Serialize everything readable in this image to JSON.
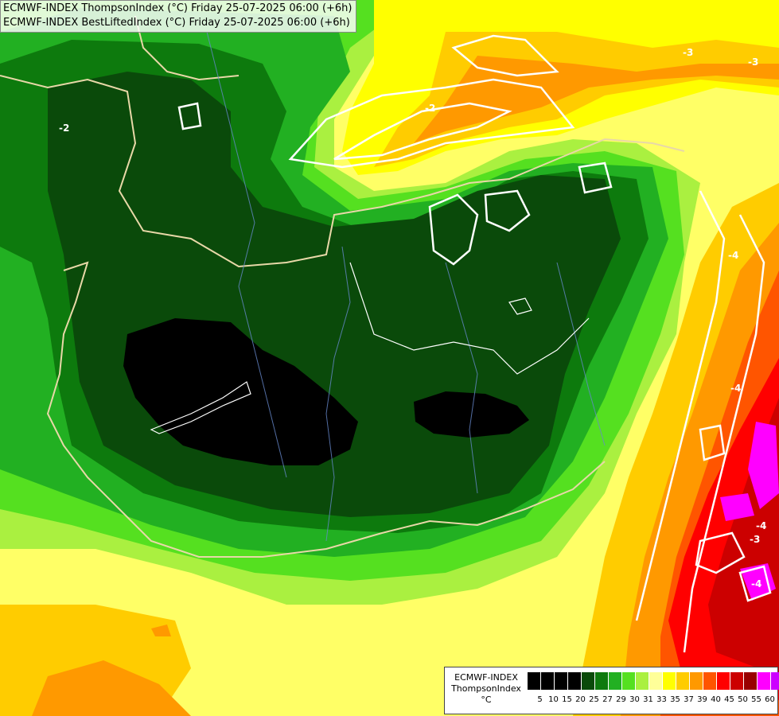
{
  "titles": [
    "ECMWF-INDEX ThompsonIndex (°C) Friday 25-07-2025 06:00 (+6h)",
    "ECMWF-INDEX BestLiftedIndex (°C) Friday 25-07-2025 06:00 (+6h)"
  ],
  "legend": {
    "model": "ECMWF-INDEX",
    "variable": "ThompsonIndex",
    "unit": "°C",
    "ticks": [
      "5",
      "10",
      "15",
      "20",
      "25",
      "27",
      "29",
      "30",
      "31",
      "33",
      "35",
      "37",
      "39",
      "40",
      "45",
      "50",
      "55",
      "60"
    ],
    "colors": [
      "#000000",
      "#000000",
      "#000000",
      "#000000",
      "#0a4a0a",
      "#0d7a0d",
      "#22b022",
      "#55e020",
      "#aaf040",
      "#ffff99",
      "#ffff00",
      "#ffcc00",
      "#ff9900",
      "#ff5500",
      "#ff0000",
      "#cc0000",
      "#990000",
      "#ff00ff",
      "#cc00ff",
      "#8800ff",
      "#0000ff"
    ]
  },
  "contour_labels": [
    "-2",
    "-2",
    "-3",
    "-3",
    "-4",
    "-4",
    "-4",
    "-3",
    "-4"
  ]
}
